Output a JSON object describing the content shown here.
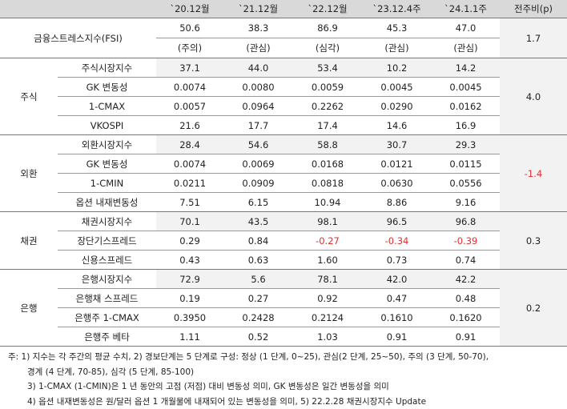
{
  "header": [
    "",
    "",
    "`20.12월",
    "`21.12월",
    "`22.12월",
    "`23.12.4주",
    "`24.1.1주",
    "전주비(p)"
  ],
  "fsi": {
    "label": "금융스트레스지수(FSI)",
    "values": [
      "50.6",
      "38.3",
      "86.9",
      "45.3",
      "47.0"
    ],
    "levels": [
      "(주의)",
      "(관심)",
      "(심각)",
      "(관심)",
      "(관심)"
    ],
    "change": "1.7"
  },
  "groups": [
    {
      "name": "주식",
      "change": "4.0",
      "change_neg": false,
      "rows": [
        {
          "label": "주식시장지수",
          "values": [
            "37.1",
            "44.0",
            "53.4",
            "10.2",
            "14.2"
          ]
        },
        {
          "label": "GK 변동성",
          "values": [
            "0.0074",
            "0.0080",
            "0.0059",
            "0.0045",
            "0.0045"
          ]
        },
        {
          "label": "1-CMAX",
          "values": [
            "0.0057",
            "0.0964",
            "0.2262",
            "0.0290",
            "0.0162"
          ]
        },
        {
          "label": "VKOSPI",
          "values": [
            "21.6",
            "17.7",
            "17.4",
            "14.6",
            "16.9"
          ]
        }
      ]
    },
    {
      "name": "외환",
      "change": "-1.4",
      "change_neg": true,
      "rows": [
        {
          "label": "외환시장지수",
          "values": [
            "28.4",
            "54.6",
            "58.8",
            "30.7",
            "29.3"
          ]
        },
        {
          "label": "GK 변동성",
          "values": [
            "0.0074",
            "0.0069",
            "0.0168",
            "0.0121",
            "0.0115"
          ]
        },
        {
          "label": "1-CMIN",
          "values": [
            "0.0211",
            "0.0909",
            "0.0818",
            "0.0630",
            "0.0556"
          ]
        },
        {
          "label": "옵션 내재변동성",
          "values": [
            "7.51",
            "6.15",
            "10.94",
            "8.86",
            "9.16"
          ]
        }
      ]
    },
    {
      "name": "채권",
      "change": "0.3",
      "change_neg": false,
      "rows": [
        {
          "label": "채권시장지수",
          "values": [
            "70.1",
            "43.5",
            "98.1",
            "96.5",
            "96.8"
          ]
        },
        {
          "label": "장단기스프레드",
          "values": [
            "0.29",
            "0.84",
            "-0.27",
            "-0.34",
            "-0.39"
          ]
        },
        {
          "label": "신용스프레드",
          "values": [
            "0.43",
            "0.63",
            "1.60",
            "0.73",
            "0.74"
          ]
        }
      ]
    },
    {
      "name": "은행",
      "change": "0.2",
      "change_neg": false,
      "rows": [
        {
          "label": "은행시장지수",
          "values": [
            "72.9",
            "5.6",
            "78.1",
            "42.0",
            "42.2"
          ]
        },
        {
          "label": "은행채 스프레드",
          "values": [
            "0.19",
            "0.27",
            "0.92",
            "0.47",
            "0.48"
          ]
        },
        {
          "label": "은행주 1-CMAX",
          "values": [
            "0.3950",
            "0.2428",
            "0.2124",
            "0.1610",
            "0.1620"
          ]
        },
        {
          "label": "은행주 베타",
          "values": [
            "1.11",
            "0.52",
            "1.03",
            "0.91",
            "0.91"
          ]
        }
      ]
    }
  ],
  "notes": [
    "주: 1) 지수는 각 주간의 평균 수치, 2) 경보단계는 5 단계로 구성: 정상 (1 단계, 0~25), 관심(2 단계, 25~50), 주의 (3 단계, 50-70),",
    "경계 (4 단계, 70-85), 심각 (5 단계, 85-100)",
    "3) 1-CMAX (1-CMIN)은 1 년 동안의 고점 (저점) 대비 변동성 의미, GK 변동성은 일간 변동성을 의미",
    "4) 옵션 내재변동성은 원/달러 옵션 1 개월물에 내재되어 있는 변동성을 의미, 5) 22.2.28 채권시장지수 Update"
  ],
  "colors": {
    "negative": "#e03030",
    "header_bg": "#d9d9d9",
    "shade": "#f2f2f2"
  }
}
